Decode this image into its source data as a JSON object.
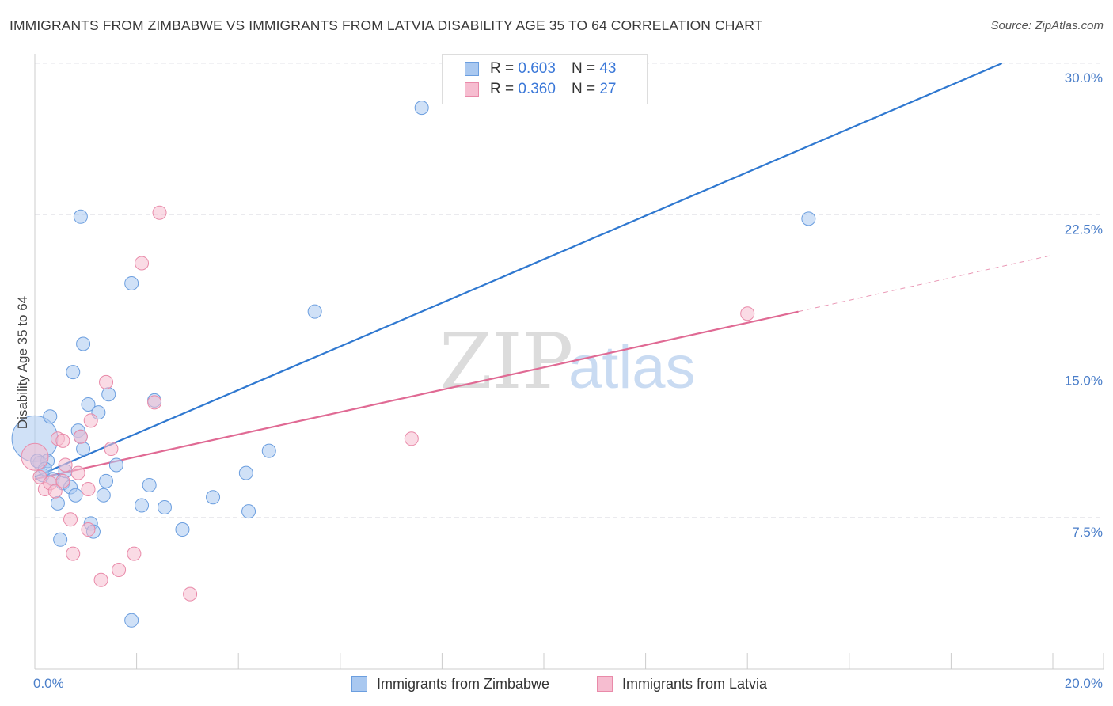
{
  "title": "IMMIGRANTS FROM ZIMBABWE VS IMMIGRANTS FROM LATVIA DISABILITY AGE 35 TO 64 CORRELATION CHART",
  "source": "Source: ZipAtlas.com",
  "watermark": {
    "zip": "ZIP",
    "atlas": "atlas"
  },
  "legend": {
    "zimbabwe": {
      "r_label": "R =",
      "r_value": "0.603",
      "n_label": "N =",
      "n_value": "43"
    },
    "latvia": {
      "r_label": "R =",
      "r_value": "0.360",
      "n_label": "N =",
      "n_value": "27"
    }
  },
  "bottom_legend": {
    "zimbabwe": "Immigrants from Zimbabwe",
    "latvia": "Immigrants from Latvia"
  },
  "colors": {
    "zimbabwe_fill": "#a9c8f0",
    "zimbabwe_stroke": "#6b9edf",
    "zimbabwe_line": "#2f78d0",
    "latvia_fill": "#f6bdd0",
    "latvia_stroke": "#e98aa9",
    "latvia_line": "#e06a94",
    "grid": "#e3e3e8",
    "tick_text": "#4a7ec9"
  },
  "chart_data": {
    "type": "scatter",
    "title": "IMMIGRANTS FROM ZIMBABWE VS IMMIGRANTS FROM LATVIA DISABILITY AGE 35 TO 64 CORRELATION CHART",
    "xlabel": "",
    "ylabel": "Disability Age 35 to 64",
    "xlim": [
      0,
      20
    ],
    "ylim": [
      0,
      30
    ],
    "x_ticks": [
      0,
      2,
      4,
      6,
      8,
      10,
      12,
      14,
      16,
      18,
      20
    ],
    "x_tick_labels": [
      {
        "value": 0,
        "label": "0.0%"
      },
      {
        "value": 20,
        "label": "20.0%"
      }
    ],
    "y_ticks": [
      {
        "value": 7.5,
        "label": "7.5%"
      },
      {
        "value": 15.0,
        "label": "15.0%"
      },
      {
        "value": 22.5,
        "label": "22.5%"
      },
      {
        "value": 30.0,
        "label": "30.0%"
      }
    ],
    "series": [
      {
        "name": "Immigrants from Zimbabwe",
        "r": 0.603,
        "n": 43,
        "points": [
          [
            0.0,
            11.4,
            3.4
          ],
          [
            0.1,
            10.2,
            1
          ],
          [
            0.15,
            9.6,
            1
          ],
          [
            0.25,
            10.3,
            1
          ],
          [
            0.3,
            12.5,
            1
          ],
          [
            0.35,
            9.4,
            1
          ],
          [
            0.45,
            8.2,
            1
          ],
          [
            0.5,
            6.4,
            1
          ],
          [
            0.55,
            9.2,
            1
          ],
          [
            0.6,
            9.8,
            1
          ],
          [
            0.7,
            9.0,
            1
          ],
          [
            0.75,
            14.7,
            1
          ],
          [
            0.8,
            8.6,
            1
          ],
          [
            0.85,
            11.8,
            1
          ],
          [
            0.9,
            11.5,
            1
          ],
          [
            0.9,
            22.4,
            1
          ],
          [
            0.95,
            10.9,
            1
          ],
          [
            0.95,
            16.1,
            1
          ],
          [
            1.05,
            13.1,
            1
          ],
          [
            1.1,
            7.2,
            1
          ],
          [
            1.15,
            6.8,
            1
          ],
          [
            1.25,
            12.7,
            1
          ],
          [
            1.35,
            8.6,
            1
          ],
          [
            1.4,
            9.3,
            1
          ],
          [
            1.45,
            13.6,
            1
          ],
          [
            1.6,
            10.1,
            1
          ],
          [
            1.9,
            2.4,
            1
          ],
          [
            1.9,
            19.1,
            1
          ],
          [
            2.1,
            8.1,
            1
          ],
          [
            2.25,
            9.1,
            1
          ],
          [
            2.35,
            13.3,
            1
          ],
          [
            2.55,
            8.0,
            1
          ],
          [
            2.9,
            6.9,
            1
          ],
          [
            3.5,
            8.5,
            1
          ],
          [
            4.15,
            9.7,
            1
          ],
          [
            4.2,
            7.8,
            1
          ],
          [
            4.6,
            10.8,
            1
          ],
          [
            5.5,
            17.7,
            1
          ],
          [
            7.6,
            27.8,
            1
          ],
          [
            10.5,
            30.0,
            1
          ],
          [
            15.2,
            22.3,
            1
          ],
          [
            0.05,
            10.3,
            1
          ],
          [
            0.2,
            9.9,
            1
          ]
        ],
        "trendline": {
          "x": [
            0.0,
            19.0
          ],
          "y": [
            9.5,
            30.0
          ]
        }
      },
      {
        "name": "Immigrants from Latvia",
        "r": 0.36,
        "n": 27,
        "points": [
          [
            0.0,
            10.5,
            2.0
          ],
          [
            0.1,
            9.5,
            1
          ],
          [
            0.2,
            8.9,
            1
          ],
          [
            0.3,
            9.2,
            1
          ],
          [
            0.4,
            8.8,
            1
          ],
          [
            0.45,
            11.4,
            1
          ],
          [
            0.55,
            11.3,
            1
          ],
          [
            0.6,
            10.1,
            1
          ],
          [
            0.7,
            7.4,
            1
          ],
          [
            0.75,
            5.7,
            1
          ],
          [
            0.85,
            9.7,
            1
          ],
          [
            0.9,
            11.5,
            1
          ],
          [
            1.05,
            6.9,
            1
          ],
          [
            1.05,
            8.9,
            1
          ],
          [
            1.1,
            12.3,
            1
          ],
          [
            1.3,
            4.4,
            1
          ],
          [
            1.4,
            14.2,
            1
          ],
          [
            1.5,
            10.9,
            1
          ],
          [
            1.65,
            4.9,
            1
          ],
          [
            1.95,
            5.7,
            1
          ],
          [
            2.1,
            20.1,
            1
          ],
          [
            2.35,
            13.2,
            1
          ],
          [
            2.45,
            22.6,
            1
          ],
          [
            3.05,
            3.7,
            1
          ],
          [
            7.4,
            11.4,
            1
          ],
          [
            14.0,
            17.6,
            1
          ],
          [
            0.55,
            9.3,
            1
          ]
        ],
        "trendline": {
          "x": [
            0.0,
            15.0
          ],
          "y": [
            9.4,
            17.7
          ]
        },
        "trendline_extension": {
          "x": [
            15.0,
            20.0
          ],
          "y": [
            17.7,
            20.5
          ]
        }
      }
    ]
  }
}
